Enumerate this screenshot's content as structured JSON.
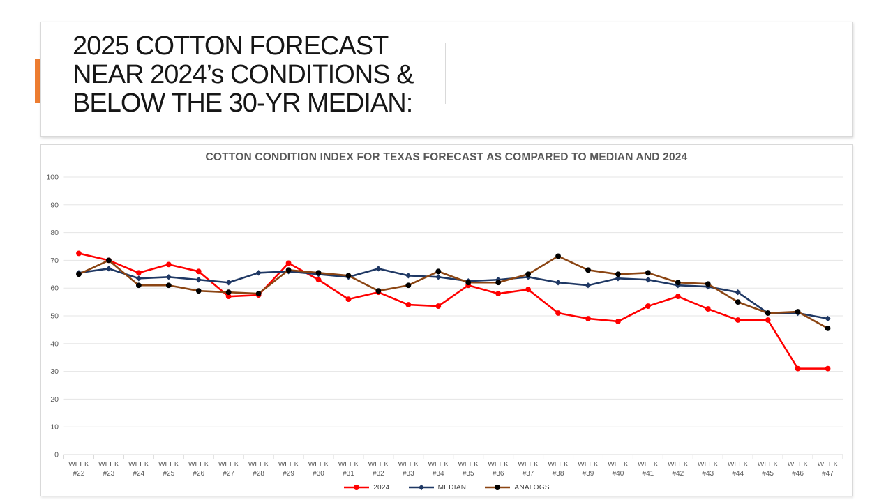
{
  "slide": {
    "title_lines": [
      "2025 COTTON FORECAST",
      "NEAR 2024’s CONDITIONS &",
      "BELOW THE 30-YR MEDIAN:"
    ],
    "accent_color": "#ED7D31"
  },
  "chart_data": {
    "type": "line",
    "title": "COTTON CONDITION INDEX FOR TEXAS FORECAST AS COMPARED TO MEDIAN AND 2024",
    "categories": [
      "WEEK #22",
      "WEEK #23",
      "WEEK #24",
      "WEEK #25",
      "WEEK #26",
      "WEEK #27",
      "WEEK #28",
      "WEEK #29",
      "WEEK #30",
      "WEEK #31",
      "WEEK #32",
      "WEEK #33",
      "WEEK #34",
      "WEEK #35",
      "WEEK #36",
      "WEEK #37",
      "WEEK #38",
      "WEEK #39",
      "WEEK #40",
      "WEEK #41",
      "WEEK #42",
      "WEEK #43",
      "WEEK #44",
      "WEEK #45",
      "WEEK #46",
      "WEEK #47"
    ],
    "series": [
      {
        "name": "2024",
        "color": "#FF0000",
        "marker": "circle",
        "values": [
          72.5,
          70,
          65.5,
          68.5,
          66,
          57,
          57.5,
          69,
          63,
          56,
          58.5,
          54,
          53.5,
          61,
          58,
          59.5,
          51,
          49,
          48,
          53.5,
          57,
          52.5,
          48.5,
          48.5,
          31,
          31
        ]
      },
      {
        "name": "MEDIAN",
        "color": "#1F3864",
        "marker": "diamond",
        "values": [
          65.5,
          67,
          63.5,
          64,
          63,
          62,
          65.5,
          66,
          65,
          64,
          67,
          64.5,
          64,
          62.5,
          63,
          64,
          62,
          61,
          63.5,
          63,
          61,
          60.5,
          58.5,
          51,
          51,
          49
        ]
      },
      {
        "name": "ANALOGS",
        "color": "#8B4513",
        "marker": "circle",
        "marker_color": "#000000",
        "values": [
          65,
          70,
          61,
          61,
          59,
          58.5,
          58,
          66.5,
          65.5,
          64.5,
          59,
          61,
          66,
          62,
          62,
          65,
          71.5,
          66.5,
          65,
          65.5,
          62,
          61.5,
          55,
          51,
          51.5,
          45.5
        ]
      }
    ],
    "xlabel": "",
    "ylabel": "",
    "ylim": [
      0,
      100
    ],
    "yticks": [
      0,
      10,
      20,
      30,
      40,
      50,
      60,
      70,
      80,
      90,
      100
    ],
    "grid": true,
    "legend_position": "bottom",
    "gridline_color": "#E5E5E5",
    "axis_color": "#D9D9D9",
    "label_color": "#595959"
  }
}
